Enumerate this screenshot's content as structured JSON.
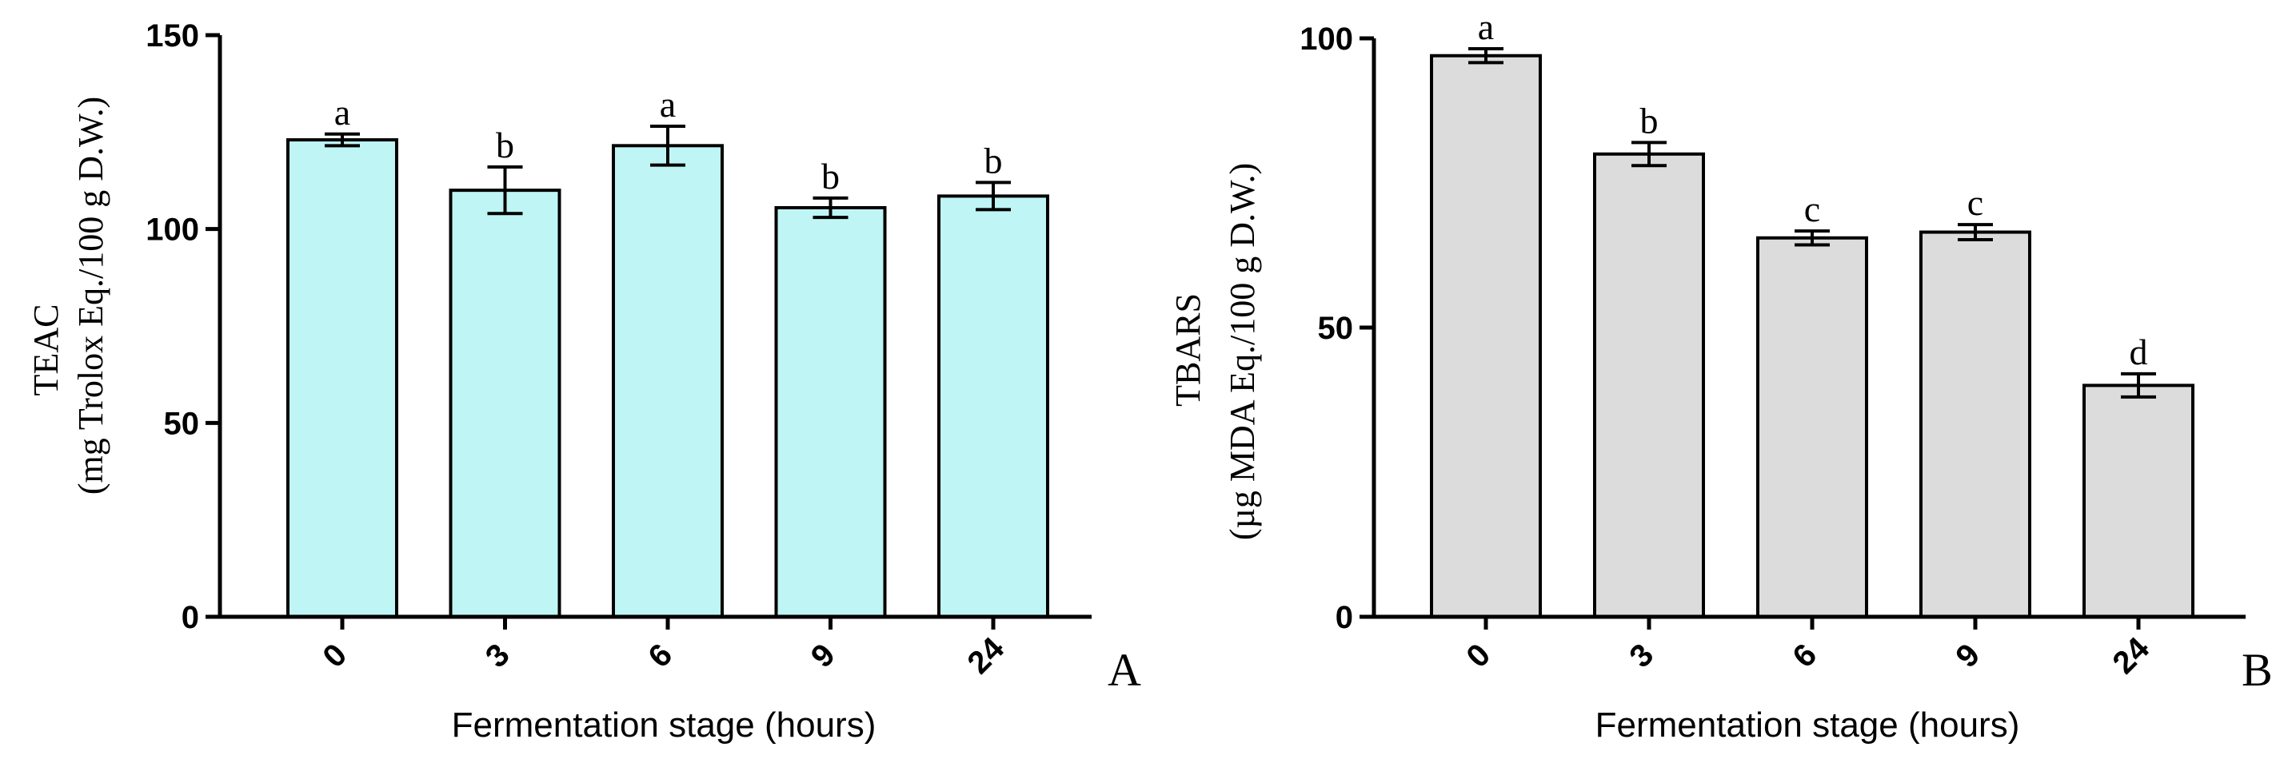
{
  "chart_data": [
    {
      "type": "bar",
      "panel_label": "A",
      "categories": [
        "0",
        "3",
        "6",
        "9",
        "24"
      ],
      "values": [
        123,
        110,
        121.5,
        105.5,
        108.5
      ],
      "errors": [
        1.5,
        6,
        5,
        2.5,
        3.5
      ],
      "significance": [
        "a",
        "b",
        "a",
        "b",
        "b"
      ],
      "ylabel_line1": "TEAC",
      "ylabel_line2": "(mg Trolox Eq./100 g D.W.)",
      "xlabel": "Fermentation stage (hours)",
      "ylim": [
        0,
        150
      ],
      "yticks": [
        0,
        50,
        100,
        150
      ],
      "bar_color": "#bff5f5"
    },
    {
      "type": "bar",
      "panel_label": "B",
      "categories": [
        "0",
        "3",
        "6",
        "9",
        "24"
      ],
      "values": [
        97,
        80,
        65.5,
        66.5,
        40
      ],
      "errors": [
        1.2,
        2,
        1.2,
        1.3,
        2
      ],
      "significance": [
        "a",
        "b",
        "c",
        "c",
        "d"
      ],
      "ylabel_line1": "TBARS",
      "ylabel_line2": "(µg MDA Eq./100 g D.W.)",
      "xlabel": "Fermentation stage (hours)",
      "ylim": [
        0,
        100
      ],
      "yticks": [
        0,
        50,
        100
      ],
      "bar_color": "#dcdcdc"
    }
  ]
}
